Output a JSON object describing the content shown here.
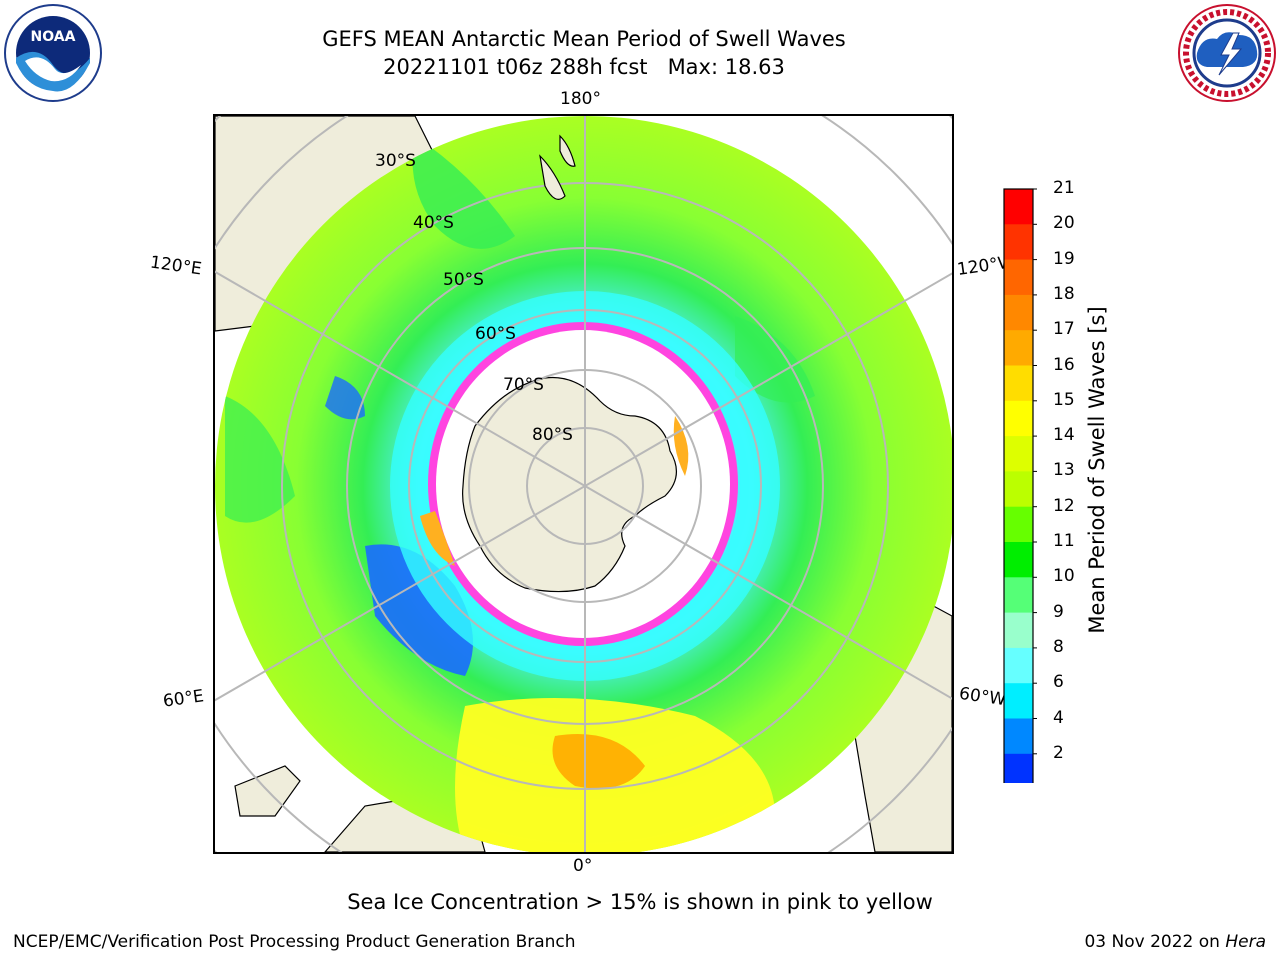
{
  "header": {
    "title_line1": "GEFS MEAN Antarctic Mean Period of Swell Waves",
    "title_line2": "20221101 t06z 288h fcst   Max: 18.63"
  },
  "logos": {
    "left": "noaa-logo",
    "right": "national-weather-service-logo"
  },
  "map": {
    "projection": "south-polar-stereographic",
    "lon_labels": {
      "top": "180°",
      "bottom": "0°",
      "left_upper": "120°E",
      "left_lower": "60°E",
      "right_upper": "120°W",
      "right_lower": "60°W"
    },
    "lat_labels": [
      "30°S",
      "40°S",
      "50°S",
      "60°S",
      "70°S",
      "80°S"
    ],
    "colors": {
      "land": "#efeddb",
      "ice_overlay": "#ff44e0",
      "ice_edge": "#ffb020"
    }
  },
  "colorbar": {
    "label": "Mean Period of Swell Waves [s]",
    "ticks": [
      "21",
      "20",
      "19",
      "18",
      "17",
      "16",
      "15",
      "14",
      "13",
      "12",
      "11",
      "10",
      "9",
      "8",
      "6",
      "4",
      "2"
    ],
    "colors": [
      "#ff0000",
      "#ff3300",
      "#ff6600",
      "#ff8800",
      "#ffaa00",
      "#ffdd00",
      "#ffff00",
      "#ddff00",
      "#bbff00",
      "#66ff00",
      "#00ee00",
      "#55ff77",
      "#99ffcc",
      "#66ffff",
      "#00eeff",
      "#0088ff",
      "#0033ff"
    ],
    "extend_color": "#0000ff"
  },
  "footer": {
    "note": "Sea Ice Concentration > 15% is shown in pink to yellow",
    "org": "NCEP/EMC/Verification Post Processing Product Generation Branch",
    "date": "03 Nov 2022 on",
    "machine": "Hera"
  }
}
